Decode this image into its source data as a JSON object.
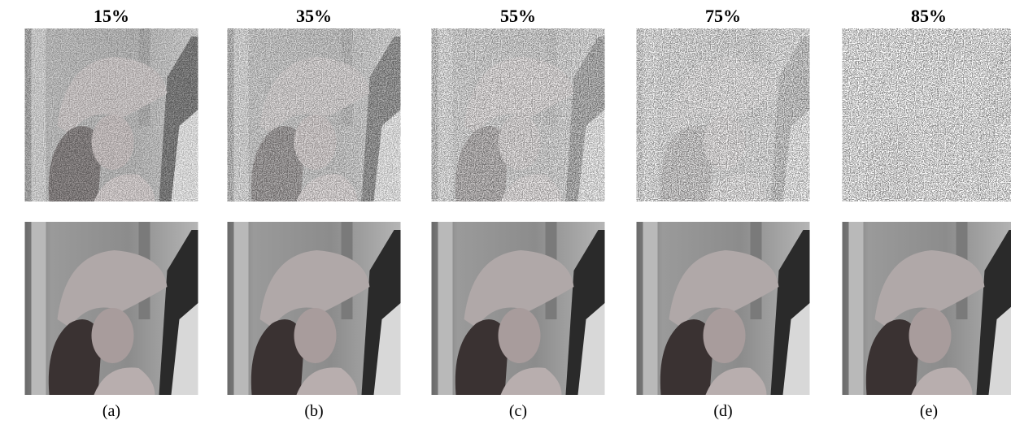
{
  "panels": [
    {
      "noise_level": "15%",
      "caption": "(a)"
    },
    {
      "noise_level": "35%",
      "caption": "(b)"
    },
    {
      "noise_level": "55%",
      "caption": "(c)"
    },
    {
      "noise_level": "75%",
      "caption": "(d)"
    },
    {
      "noise_level": "85%",
      "caption": "(e)"
    }
  ]
}
